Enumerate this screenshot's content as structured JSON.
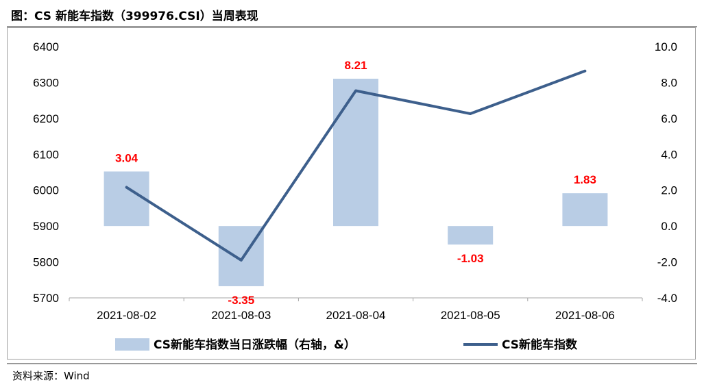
{
  "title": "图：CS 新能车指数（399976.CSI）当周表现",
  "source": "资料来源：Wind",
  "chart_data": {
    "type": "bar+line",
    "categories": [
      "2021-08-02",
      "2021-08-03",
      "2021-08-04",
      "2021-08-05",
      "2021-08-06"
    ],
    "series": [
      {
        "name": "CS新能车指数当日涨跌幅（右轴，&）",
        "type": "bar",
        "axis": "right",
        "color": "#b9cde5",
        "values": [
          3.04,
          -3.35,
          8.21,
          -1.03,
          1.83
        ],
        "labels": [
          "3.04",
          "-3.35",
          "8.21",
          "-1.03",
          "1.83"
        ]
      },
      {
        "name": "CS新能车指数",
        "type": "line",
        "axis": "left",
        "color": "#3d5f8c",
        "values": [
          6008,
          5805,
          6277,
          6213,
          6332
        ]
      }
    ],
    "y_left": {
      "min": 5700,
      "max": 6400,
      "ticks": [
        "5700",
        "5800",
        "5900",
        "6000",
        "6100",
        "6200",
        "6300",
        "6400"
      ]
    },
    "y_right": {
      "min": -4.0,
      "max": 10.0,
      "ticks": [
        "-4.0",
        "-2.0",
        "0.0",
        "2.0",
        "4.0",
        "6.0",
        "8.0",
        "10.0"
      ]
    },
    "grid": false,
    "legend_position": "bottom",
    "label_color": "#ff0000"
  }
}
